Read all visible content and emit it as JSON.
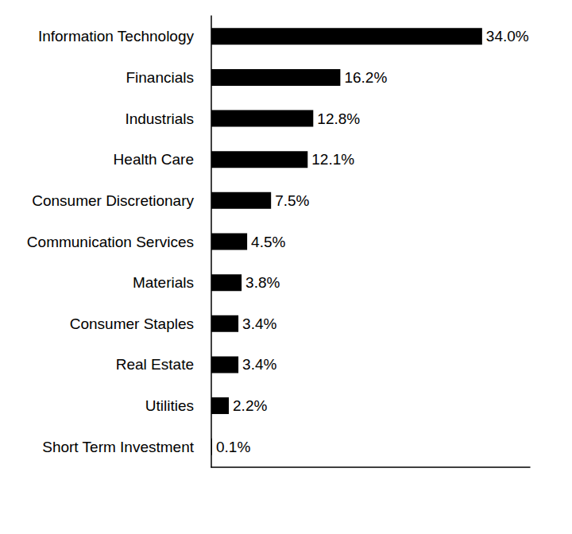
{
  "chart_data": {
    "type": "bar",
    "orientation": "horizontal",
    "categories": [
      "Information Technology",
      "Financials",
      "Industrials",
      "Health Care",
      "Consumer Discretionary",
      "Communication Services",
      "Materials",
      "Consumer Staples",
      "Real Estate",
      "Utilities",
      "Short Term Investment"
    ],
    "values": [
      34.0,
      16.2,
      12.8,
      12.1,
      7.5,
      4.5,
      3.8,
      3.4,
      3.4,
      2.2,
      0.1
    ],
    "value_labels": [
      "34.0%",
      "16.2%",
      "12.8%",
      "12.1%",
      "7.5%",
      "4.5%",
      "3.8%",
      "3.4%",
      "3.4%",
      "2.2%",
      "0.1%"
    ],
    "color": "#000000",
    "xlim": [
      0,
      40
    ],
    "grid": false,
    "data_labels": true,
    "tick_labels": "y"
  }
}
